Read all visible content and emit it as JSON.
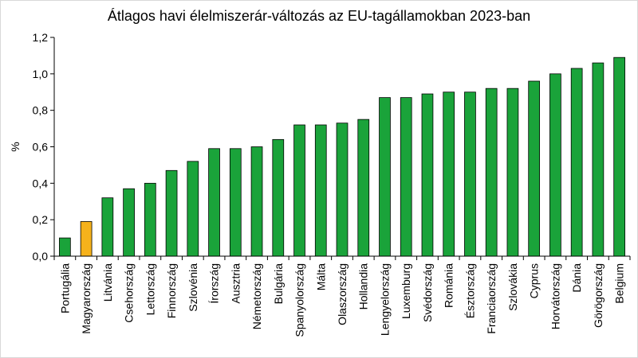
{
  "chart_data": {
    "type": "bar",
    "title": "Átlagos havi élelmiszerár-változás az EU-tagállamokban 2023-ban",
    "xlabel": "",
    "ylabel": "%",
    "ylim": [
      0,
      1.2
    ],
    "yticks": [
      "0,0",
      "0,2",
      "0,4",
      "0,6",
      "0,8",
      "1,0",
      "1,2"
    ],
    "grid": false,
    "legend": "none",
    "colors": {
      "default": "#1aa33a",
      "highlight": "#f6b21b",
      "stroke": "#000000"
    },
    "highlight_category": "Magyarország",
    "categories": [
      "Portugália",
      "Magyarország",
      "Litvánia",
      "Csehország",
      "Lettország",
      "Finnország",
      "Szlovénia",
      "Írország",
      "Ausztria",
      "Németország",
      "Bulgária",
      "Spanyolország",
      "Málta",
      "Olaszország",
      "Hollandia",
      "Lengyelország",
      "Luxemburg",
      "Svédország",
      "Románia",
      "Észtország",
      "Franciaország",
      "Szlovákia",
      "Cyprus",
      "Horvátország",
      "Dánia",
      "Görögország",
      "Belgium"
    ],
    "values": [
      0.1,
      0.19,
      0.32,
      0.37,
      0.4,
      0.47,
      0.52,
      0.59,
      0.59,
      0.6,
      0.64,
      0.72,
      0.72,
      0.73,
      0.75,
      0.87,
      0.87,
      0.89,
      0.9,
      0.9,
      0.92,
      0.92,
      0.96,
      1.0,
      1.03,
      1.06,
      1.09
    ]
  }
}
